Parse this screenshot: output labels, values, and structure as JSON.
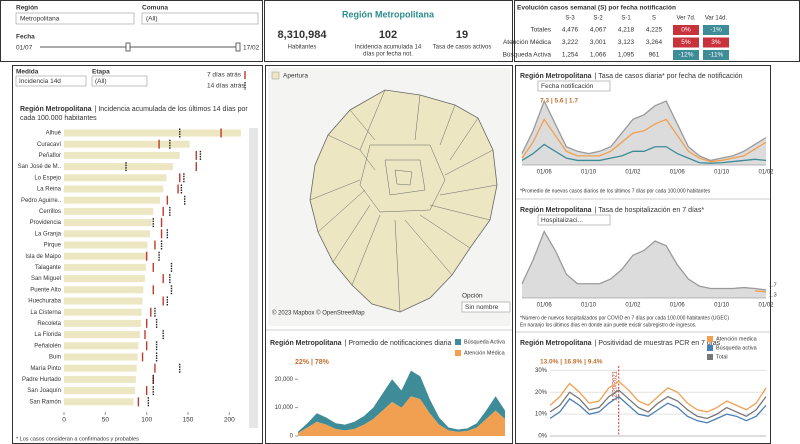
{
  "filters": {
    "region_label": "Región",
    "region": "Metropolitana",
    "comuna_label": "Comuna",
    "comuna": "(All)",
    "fecha_label": "Fecha",
    "fecha_start": "01/07",
    "fecha_end": "17/02",
    "measure_label": "Medida",
    "measure": "Incidencia 14d",
    "stage_label": "Etapa",
    "stage": "(All)"
  },
  "kpis": {
    "title": "Región Metropolitana",
    "items": [
      {
        "value": "8,310,984",
        "label": [
          "Habitantes"
        ]
      },
      {
        "value": "102",
        "label": [
          "Incidencia acumulada 14",
          "días por fecha not."
        ]
      },
      {
        "value": "19",
        "label": [
          "Tasa de casos activos"
        ]
      }
    ]
  },
  "table": {
    "title": "Evolución casos semanal (S) por fecha notificación",
    "columns": [
      "S-3",
      "S-2",
      "S-1",
      "S",
      "Ver 7d.",
      "Var 14d."
    ],
    "rows": [
      [
        "Totales",
        "4,476",
        "4,067",
        "4,218",
        "4,225",
        "0%",
        "-1%"
      ],
      [
        "Atención Médica",
        "3,222",
        "3,001",
        "3,123",
        "3,264",
        "5%",
        "3%"
      ],
      [
        "Búsqueda Activa",
        "1,254",
        "1,066",
        "1,095",
        "961",
        "-12%",
        "-11%"
      ]
    ],
    "change_colors": [
      [
        "#c8323c",
        "#3d8c98"
      ],
      [
        "#c8323c",
        "#c8323c"
      ],
      [
        "#3d8c98",
        "#3d8c98"
      ]
    ]
  },
  "map": {
    "legend": "Apertura",
    "color": "#ece6c2",
    "credit": "© 2023 Mapbox © OpenStreetMap",
    "option_label": "Opción",
    "option": "Sin nombre"
  },
  "chart_data": [
    {
      "type": "hbar",
      "title": "Región Metropolitana",
      "subtitle": [
        "| Incidencia acumulada de los últimos 14 días por",
        "cada 100.000 habitantes"
      ],
      "categories": [
        "Alhué",
        "Curacaví",
        "Peñaflor",
        "San José de M..",
        "Lo Espejo",
        "La Reina",
        "Pedro Aguirre..",
        "Cerrillos",
        "Providencia",
        "La Granja",
        "Pirque",
        "Isla de Maipo",
        "Talagante",
        "San Miguel",
        "Puente Alto",
        "Huechuraba",
        "La Cisterna",
        "Recoleta",
        "La Florida",
        "Peñalolén",
        "Buin",
        "María Pinto",
        "Padre Hurtado",
        "San Joaquín",
        "San Ramón"
      ],
      "values": [
        214,
        152,
        140,
        132,
        124,
        120,
        116,
        108,
        106,
        104,
        101,
        100,
        99,
        98,
        96,
        95,
        94,
        93,
        92,
        90,
        89,
        88,
        87,
        86,
        84
      ],
      "color": "#ece6c2",
      "markers": [
        {
          "name": "7 días atrás",
          "color": "#c0392b",
          "dash": false,
          "values": [
            190,
            115,
            160,
            160,
            140,
            138,
            125,
            120,
            118,
            118,
            110,
            100,
            108,
            120,
            108,
            120,
            105,
            100,
            98,
            100,
            95,
            110,
            108,
            100,
            90
          ]
        },
        {
          "name": "14 días atrás",
          "color": "#222222",
          "dash": true,
          "values": [
            140,
            128,
            165,
            75,
            145,
            142,
            146,
            128,
            108,
            125,
            118,
            115,
            130,
            128,
            130,
            125,
            110,
            112,
            120,
            112,
            112,
            140,
            108,
            108,
            102
          ]
        }
      ],
      "xlim": [
        0,
        225
      ],
      "xticks": [
        0,
        50,
        100,
        150,
        200
      ],
      "note": "* Los casos consideran a confirmados y probables"
    },
    {
      "type": "stacked_area",
      "title": "Región Metropolitana",
      "subtitle": "| Promedio de notificaciones diaria",
      "share_label": "22% | 78%",
      "series": [
        {
          "name": "Atención Médica",
          "color": "#f0a050",
          "values": [
            1000,
            3000,
            5000,
            4000,
            2500,
            2000,
            2500,
            4000,
            6000,
            9000,
            12000,
            10000,
            14000,
            13000,
            8000,
            4000,
            2000,
            1500,
            1800,
            3000,
            6000,
            9000,
            6000
          ]
        },
        {
          "name": "Búsqueda Activa",
          "color": "#3d8c98",
          "values": [
            500,
            1500,
            3000,
            2500,
            2000,
            2000,
            2500,
            3000,
            4000,
            6000,
            8000,
            6000,
            9000,
            8000,
            5000,
            2500,
            1000,
            800,
            900,
            1500,
            3000,
            5000,
            3000
          ]
        }
      ],
      "ylim": [
        0,
        25000
      ],
      "yticks": [
        0,
        {
          "value": 10000,
          "label": "10,000"
        },
        {
          "value": 20000,
          "label": "20,000"
        }
      ]
    },
    {
      "type": "line",
      "title": "Región Metropolitana",
      "subtitle": "| Tasa de casos diaria* por fecha de notificación",
      "control": "Fecha notificación",
      "value_text": "7.3 | 5.6 | 1.7",
      "categories": [
        null,
        null,
        "01/06",
        null,
        null,
        null,
        "01/10",
        null,
        null,
        null,
        "01/02",
        null,
        null,
        null,
        "01/06",
        null,
        null,
        null,
        "01/10",
        null,
        null,
        null,
        "01/02"
      ],
      "series": [
        {
          "color": "#9a9a9a",
          "area": true,
          "values": [
            5,
            15,
            28,
            18,
            8,
            6,
            5,
            6,
            8,
            14,
            20,
            22,
            26,
            28,
            18,
            8,
            4,
            2,
            3,
            4,
            6,
            9,
            12
          ]
        },
        {
          "color": "#f0a050",
          "area": false,
          "values": [
            3,
            10,
            20,
            13,
            6,
            4,
            4,
            4,
            6,
            10,
            14,
            15,
            18,
            20,
            13,
            6,
            3,
            1.5,
            2,
            3,
            4,
            7,
            10
          ]
        },
        {
          "color": "#3d8c98",
          "area": false,
          "values": [
            2,
            5,
            9,
            6,
            3,
            2,
            2,
            2,
            3,
            4,
            6,
            6,
            8,
            8,
            5,
            3,
            1,
            0.8,
            1,
            1.5,
            2,
            2.5,
            2
          ]
        }
      ],
      "ylim": [
        0,
        32
      ],
      "note": [
        "*Promedio de nuevos casos diarios de los últimos 7 días por cada 100.000 habitantes"
      ]
    },
    {
      "type": "line",
      "title": "Región Metropolitana",
      "subtitle": "| Tasa de hospitalización en 7 días*",
      "control": "Hospitalizaci...",
      "categories": [
        null,
        null,
        "01/06",
        null,
        null,
        null,
        "01/10",
        null,
        null,
        null,
        "01/02",
        null,
        null,
        null,
        "01/06",
        null,
        null,
        null,
        "01/10",
        null,
        null,
        null,
        "01/02"
      ],
      "series": [
        {
          "color": "#9a9a9a",
          "area": true,
          "end_label": true,
          "values": [
            3,
            8,
            14,
            10,
            5,
            3,
            3,
            3,
            4,
            6,
            9,
            10,
            12,
            11,
            7,
            4,
            2.5,
            2,
            2,
            2,
            2.2,
            2,
            1.7
          ]
        },
        {
          "color": "#f0a050",
          "area": false,
          "end_label": true,
          "values": [
            null,
            null,
            null,
            null,
            null,
            null,
            null,
            null,
            null,
            null,
            null,
            null,
            null,
            null,
            null,
            null,
            null,
            null,
            null,
            null,
            null,
            1.5,
            1.3
          ]
        }
      ],
      "ylim": [
        0,
        16
      ],
      "note": [
        "*Número de nuevos hospitalizados por COVID en 7 días por cada 100.000 habitantes (UGEC)",
        "En naranjo los últimos días en donde aún puede existir subregistro de ingresos."
      ]
    },
    {
      "type": "line",
      "title": "Región Metropolitana",
      "subtitle": "| Positividad de muestras PCR en 7 días",
      "value_text": "13.0% | 16.8% | 9.4%",
      "categories": [
        null,
        null,
        null,
        null,
        null,
        null,
        null,
        "12/20/2021",
        null,
        null,
        null,
        null,
        null,
        null,
        null,
        null,
        null,
        null,
        null,
        null,
        null,
        null,
        null
      ],
      "series": [
        {
          "name": "Atención medica",
          "color": "#f0a050",
          "area": false,
          "values": [
            14,
            18,
            24,
            20,
            15,
            16,
            22,
            25,
            21,
            16,
            14,
            18,
            22,
            20,
            15,
            12,
            11,
            13,
            16,
            14,
            12,
            15,
            22
          ]
        },
        {
          "name": "Búsqueda activa",
          "color": "#4a7fb5",
          "area": false,
          "values": [
            8,
            11,
            17,
            14,
            10,
            11,
            15,
            18,
            14,
            10,
            9,
            12,
            15,
            13,
            9,
            7,
            6,
            8,
            10,
            9,
            7,
            9,
            14
          ]
        },
        {
          "name": "Total",
          "color": "#777777",
          "area": false,
          "values": [
            11,
            14,
            20,
            17,
            12,
            13,
            18,
            21,
            17,
            13,
            11,
            15,
            18,
            16,
            12,
            9,
            8,
            10,
            13,
            11,
            9,
            12,
            18
          ]
        }
      ],
      "ylim": [
        0,
        32
      ],
      "yticks": [
        {
          "value": 0,
          "label": "0%"
        },
        {
          "value": 10,
          "label": "10%"
        },
        {
          "value": 20,
          "label": "20%"
        },
        {
          "value": 30,
          "label": "30%"
        }
      ],
      "grid": true
    }
  ]
}
